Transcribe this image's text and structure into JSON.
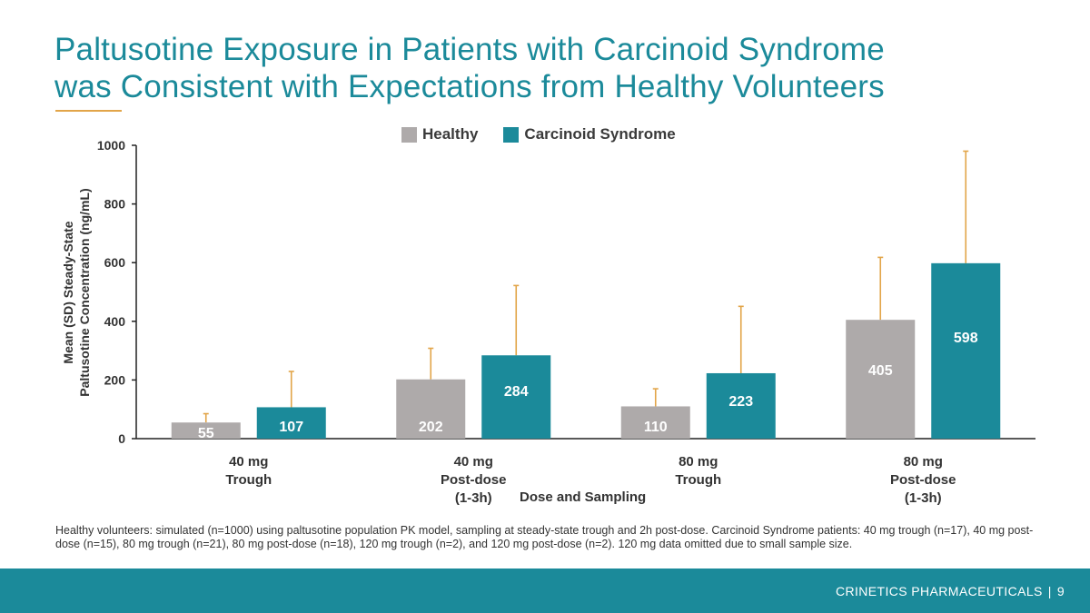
{
  "header": {
    "title_line1": "Paltusotine Exposure in Patients with Carcinoid Syndrome",
    "title_line2": "was Consistent with Expectations from Healthy Volunteers"
  },
  "colors": {
    "accent": "#1b8a9a",
    "healthy": "#aeaaaa",
    "carcinoid": "#1b8a9a",
    "error_bar": "#e2a549"
  },
  "chart_data": {
    "type": "bar",
    "categories": [
      [
        "40 mg",
        "Trough"
      ],
      [
        "40 mg",
        "Post-dose",
        "(1-3h)"
      ],
      [
        "80 mg",
        "Trough"
      ],
      [
        "80 mg",
        "Post-dose",
        "(1-3h)"
      ]
    ],
    "series": [
      {
        "name": "Healthy",
        "values": [
          55,
          202,
          110,
          405
        ],
        "error_top": [
          85,
          308,
          170,
          618
        ]
      },
      {
        "name": "Carcinoid Syndrome",
        "values": [
          107,
          284,
          223,
          598
        ],
        "error_top": [
          229,
          522,
          451,
          980
        ]
      }
    ],
    "data_labels": [
      [
        "55",
        "202",
        "110",
        "405"
      ],
      [
        "107",
        "284",
        "223",
        "598"
      ]
    ],
    "xlabel": "Dose and Sampling",
    "ylabel": [
      "Mean (SD) Steady-State",
      "Paltusotine Concentration (ng/mL)"
    ],
    "ylim": [
      0,
      1000
    ],
    "yticks": [
      "0",
      "200",
      "400",
      "600",
      "800",
      "1000"
    ],
    "legend_position": "top-center",
    "grid": false
  },
  "footnote": "Healthy volunteers: simulated (n=1000) using paltusotine population PK model, sampling at steady-state trough and 2h post-dose. Carcinoid Syndrome patients: 40 mg trough (n=17), 40 mg post-dose (n=15), 80 mg trough (n=21), 80 mg post-dose (n=18), 120 mg trough (n=2), and 120 mg post-dose (n=2). 120 mg data omitted due to small sample size.",
  "footer": {
    "company": "CRINETICS PHARMACEUTICALS",
    "separator": "|",
    "page_number": "9"
  }
}
